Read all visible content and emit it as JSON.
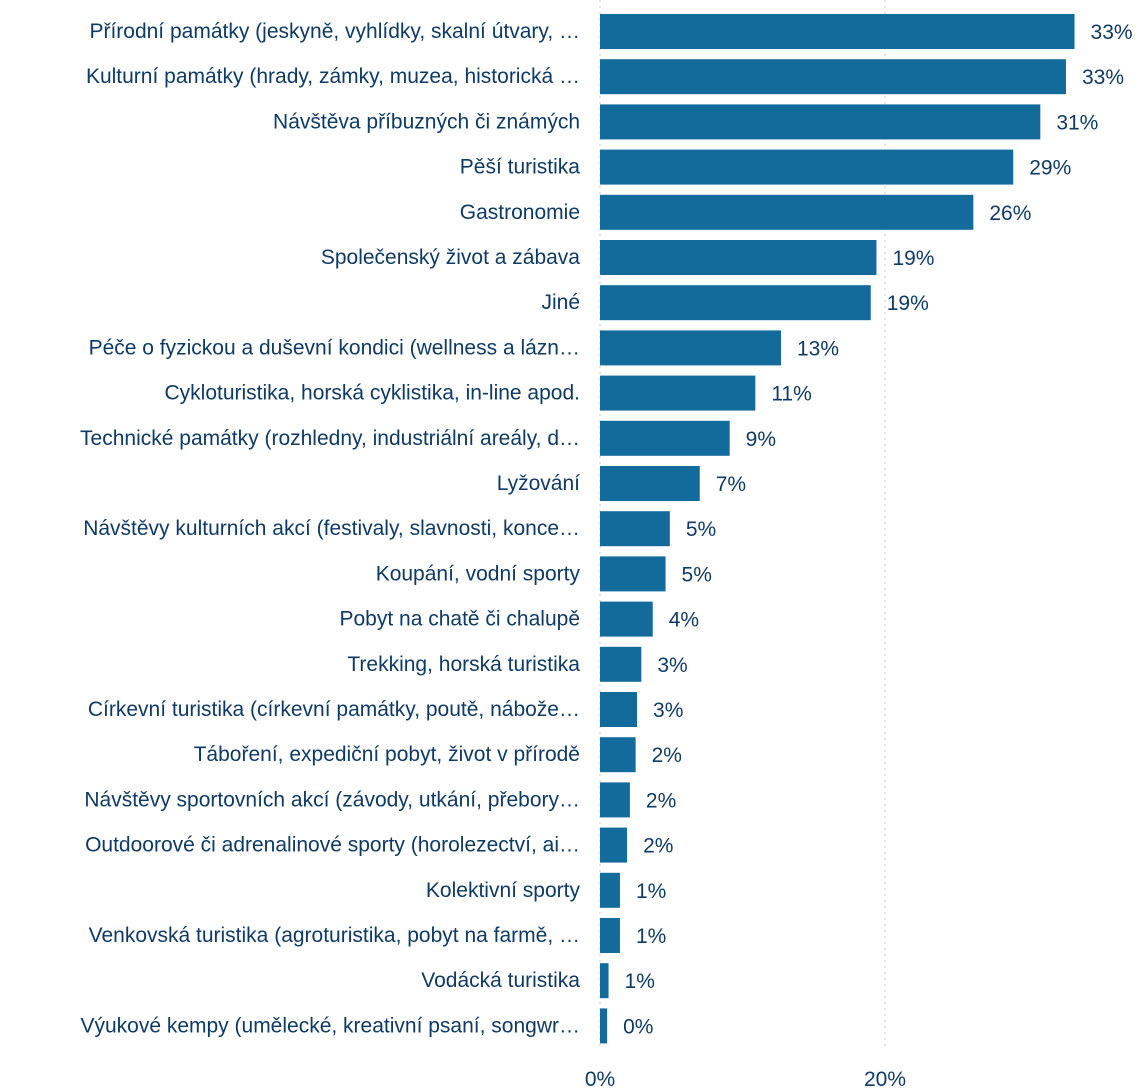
{
  "chart_data": {
    "type": "bar",
    "orientation": "horizontal",
    "bar_color": "#136b9c",
    "text_color": "#0f3a63",
    "grid": "vertical-dotted",
    "xlim": [
      0,
      33
    ],
    "x_ticks": [
      {
        "value": 0,
        "label": "0%"
      },
      {
        "value": 20,
        "label": "20%"
      }
    ],
    "categories": [
      "Přírodní památky (jeskyně, vyhlídky, skalní útvary, …",
      "Kulturní památky (hrady, zámky, muzea, historická …",
      "Návštěva příbuzných či známých",
      "Pěší turistika",
      "Gastronomie",
      "Společenský život a zábava",
      "Jiné",
      "Péče o fyzickou a duševní kondici (wellness a lázn…",
      "Cykloturistika, horská cyklistika, in-line apod.",
      "Technické památky (rozhledny, industriální areály, d…",
      "Lyžování",
      "Návštěvy kulturních akcí (festivaly, slavnosti, konce…",
      "Koupání, vodní sporty",
      "Pobyt na chatě či chalupě",
      "Trekking, horská turistika",
      "Církevní turistika (církevní památky, poutě, nábože…",
      "Táboření, expediční pobyt, život v přírodě",
      "Návštěvy sportovních akcí (závody, utkání, přebory…",
      "Outdoorové či adrenalinové sporty (horolezectví, ai…",
      "Kolektivní sporty",
      "Venkovská turistika (agroturistika, pobyt na farmě, …",
      "Vodácká turistika",
      "Výukové kempy (umělecké, kreativní psaní, songwr…"
    ],
    "values": [
      33.3,
      32.7,
      30.9,
      29.0,
      26.2,
      19.4,
      19.0,
      12.7,
      10.9,
      9.1,
      7.0,
      4.9,
      4.6,
      3.7,
      2.9,
      2.6,
      2.5,
      2.1,
      1.9,
      1.4,
      1.4,
      0.6,
      0.5
    ],
    "value_labels": [
      "33%",
      "33%",
      "31%",
      "29%",
      "26%",
      "19%",
      "19%",
      "13%",
      "11%",
      "9%",
      "7%",
      "5%",
      "5%",
      "4%",
      "3%",
      "3%",
      "2%",
      "2%",
      "2%",
      "1%",
      "1%",
      "1%",
      "0%"
    ]
  }
}
